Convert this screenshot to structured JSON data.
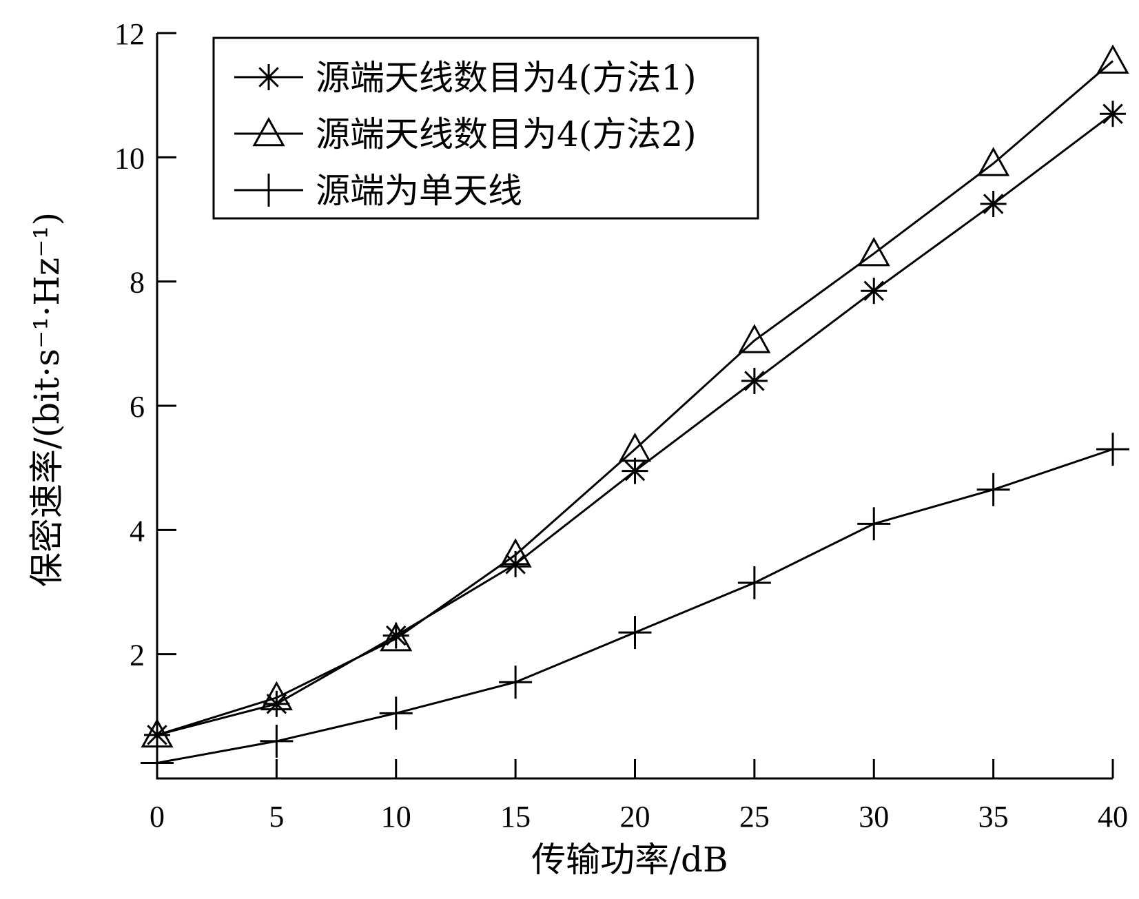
{
  "chart_data": {
    "type": "line",
    "xlabel": "传输功率/dB",
    "ylabel": "保密速率/(bit·s⁻¹·Hz⁻¹)",
    "xlim": [
      0,
      40
    ],
    "ylim": [
      0,
      12
    ],
    "xticks": [
      0,
      5,
      10,
      15,
      20,
      25,
      30,
      35,
      40
    ],
    "yticks": [
      2,
      4,
      6,
      8,
      10,
      12
    ],
    "grid": false,
    "legend_position": "top-left",
    "x": [
      0,
      5,
      10,
      15,
      20,
      25,
      30,
      35,
      40
    ],
    "series": [
      {
        "name": "源端天线数目为4(方法1)",
        "marker": "asterisk",
        "values": [
          0.7,
          1.2,
          2.3,
          3.45,
          4.95,
          6.4,
          7.85,
          9.25,
          10.7
        ]
      },
      {
        "name": "源端天线数目为4(方法2)",
        "marker": "triangle",
        "values": [
          0.7,
          1.3,
          2.25,
          3.6,
          5.3,
          7.05,
          8.45,
          9.9,
          11.55
        ]
      },
      {
        "name": "源端为单天线",
        "marker": "plus",
        "values": [
          0.25,
          0.6,
          1.05,
          1.55,
          2.35,
          3.15,
          4.1,
          4.65,
          5.3
        ]
      }
    ]
  }
}
